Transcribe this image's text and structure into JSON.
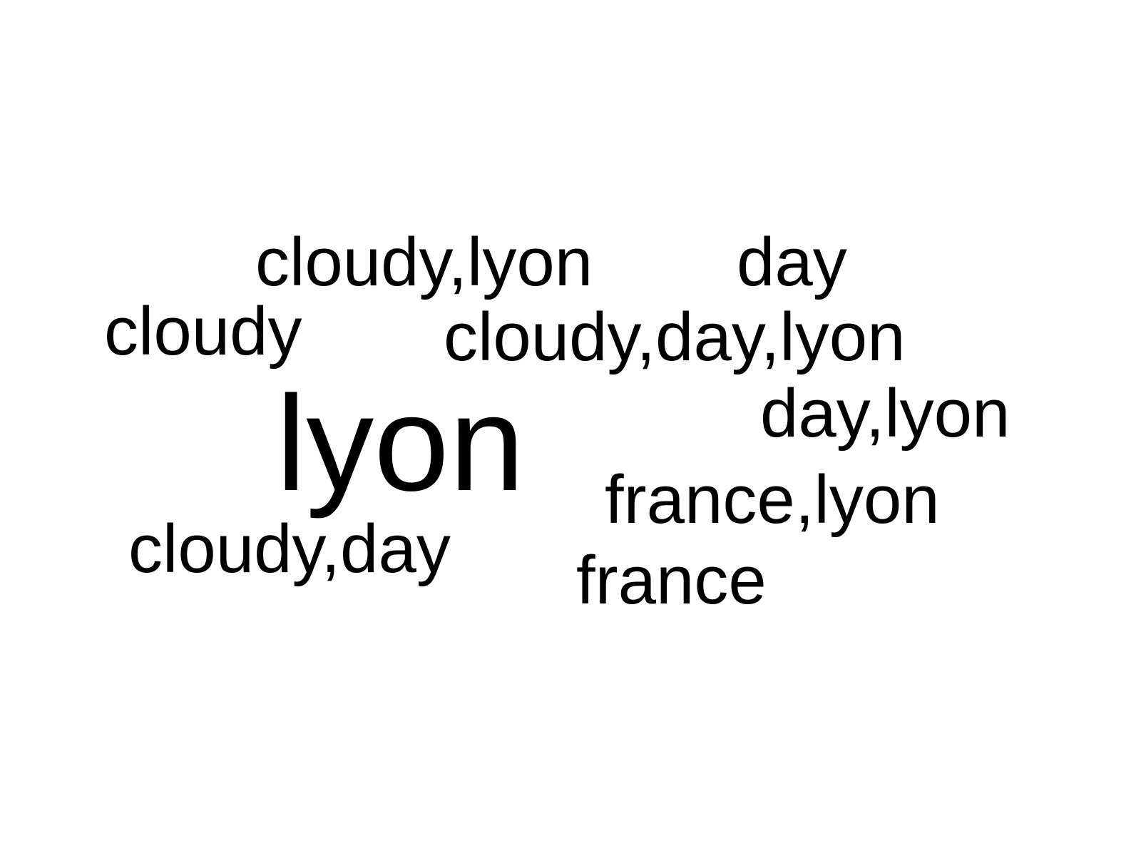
{
  "text_color": "#000000",
  "background_color": "#ffffff",
  "words": [
    {
      "text": "lyon",
      "rank": 1
    },
    {
      "text": "cloudy,lyon",
      "rank": 2
    },
    {
      "text": "day",
      "rank": 2
    },
    {
      "text": "cloudy",
      "rank": 2
    },
    {
      "text": "cloudy,day,lyon",
      "rank": 2
    },
    {
      "text": "day,lyon",
      "rank": 2
    },
    {
      "text": "france,lyon",
      "rank": 2
    },
    {
      "text": "cloudy,day",
      "rank": 2
    },
    {
      "text": "france",
      "rank": 2
    }
  ]
}
